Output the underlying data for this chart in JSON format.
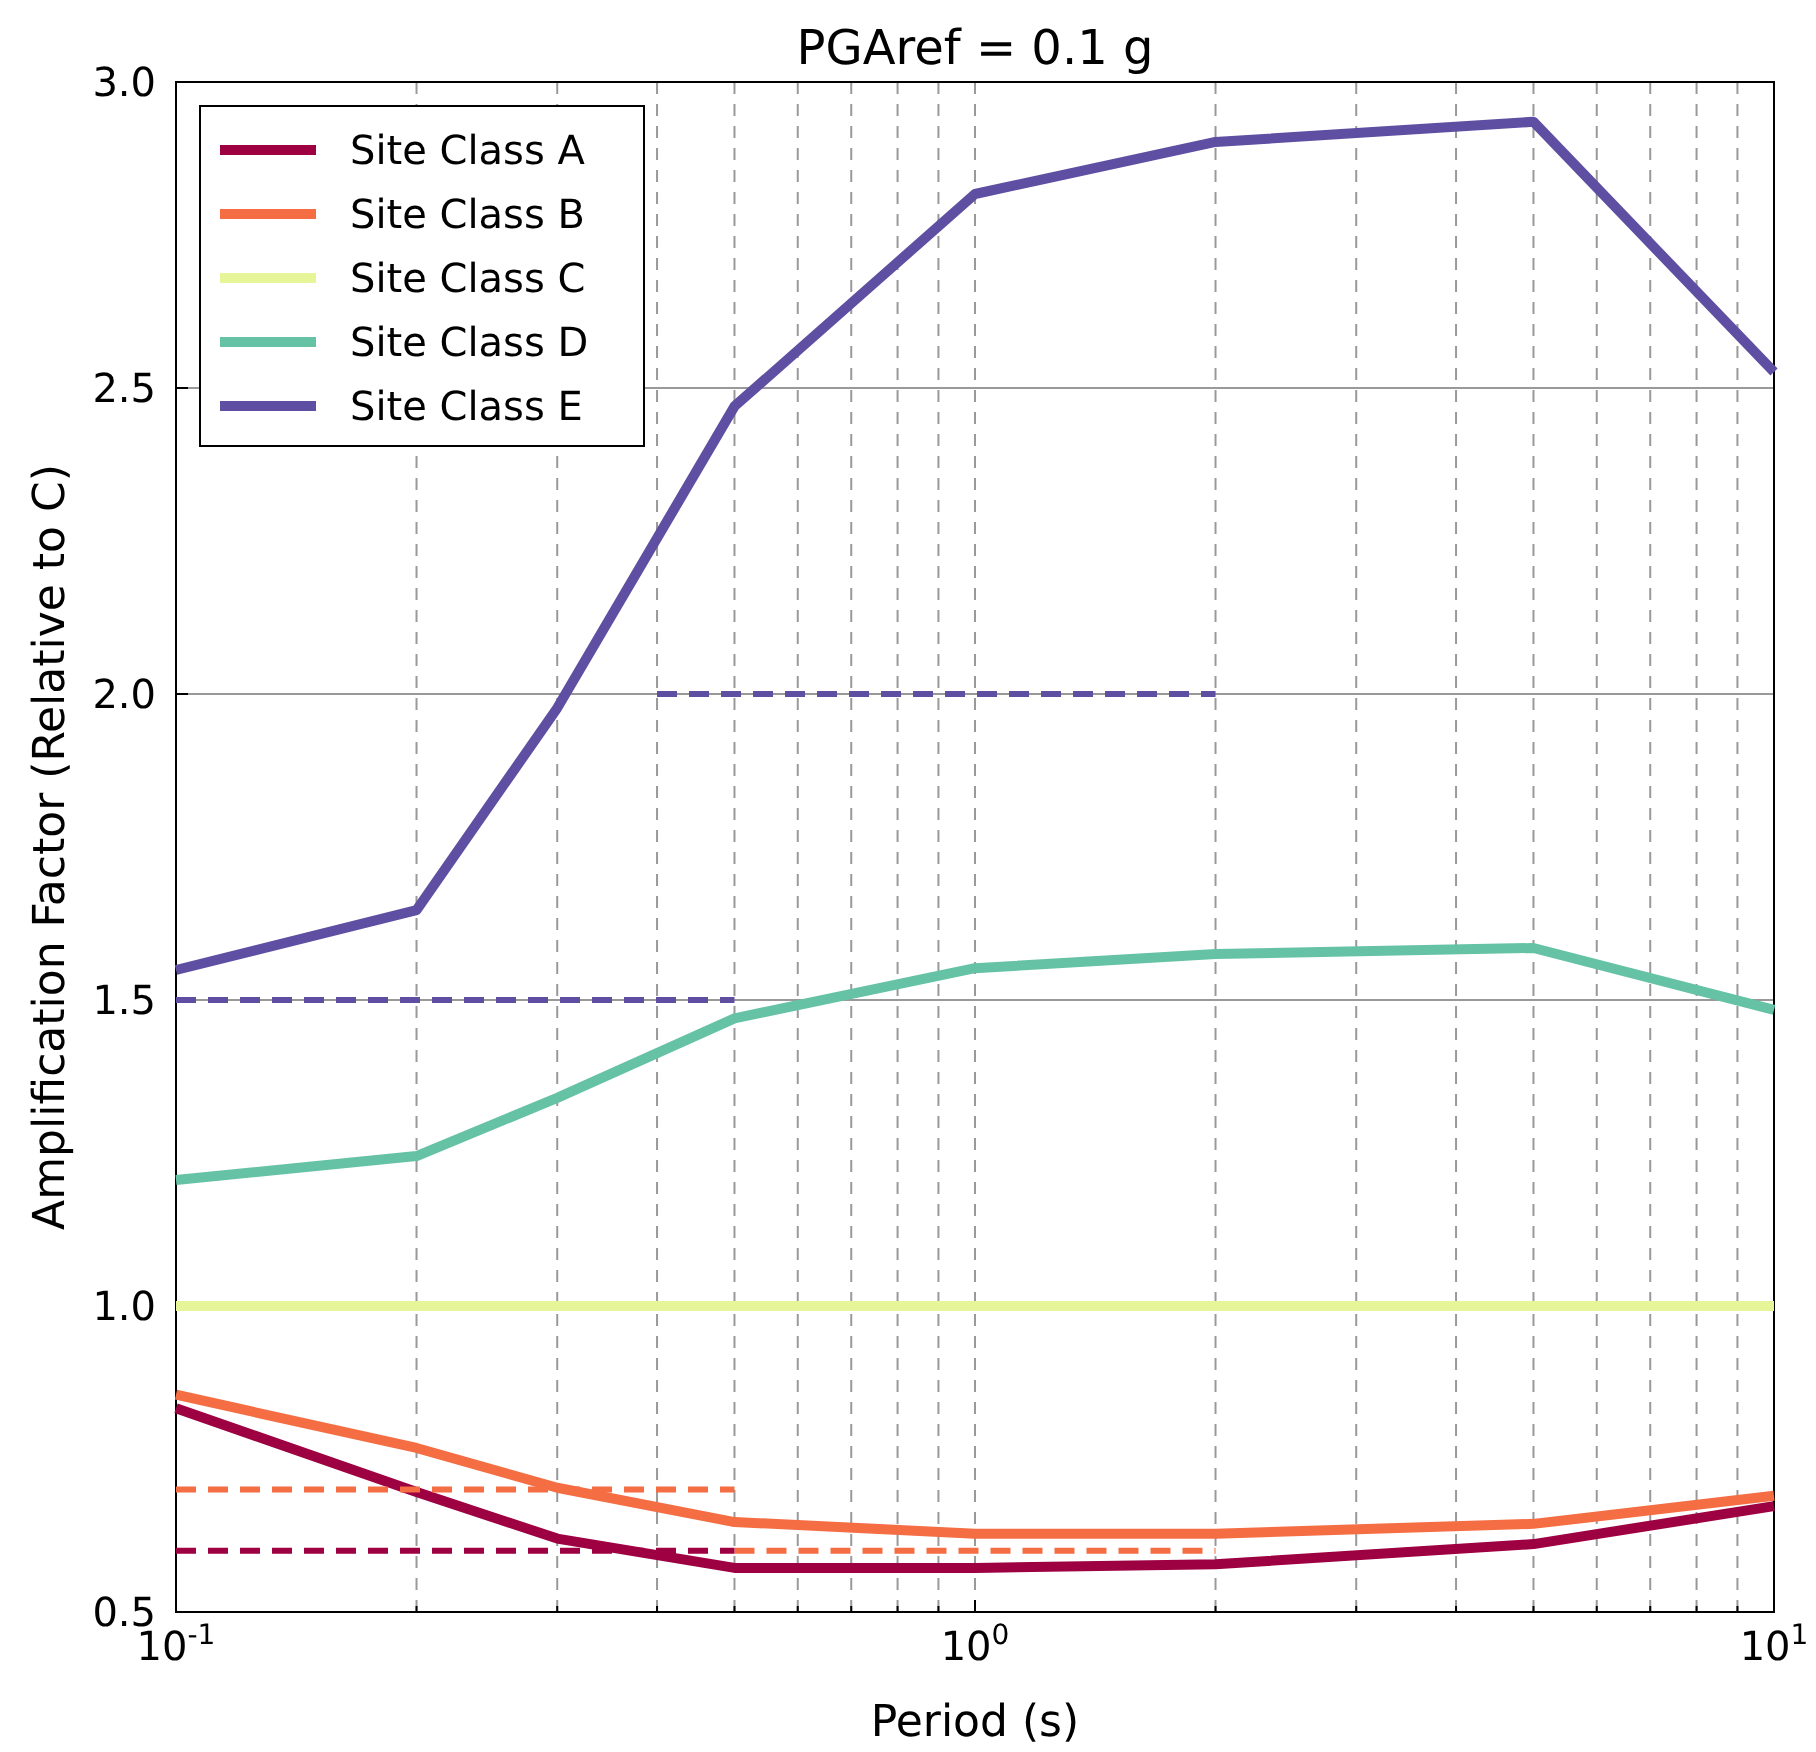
{
  "chart_data": {
    "type": "line",
    "title": "PGAref = 0.1 g",
    "xlabel": "Period (s)",
    "ylabel": "Amplification Factor (Relative to C)",
    "log": "x",
    "grid": true,
    "legend": "top left",
    "marker": "none",
    "line_style": "solid",
    "xlim": [
      0.1,
      10
    ],
    "ylim": [
      0.5,
      3.0
    ],
    "xticks": [
      {
        "value": 0.1,
        "label": "10$^{-1}$"
      },
      {
        "value": 0.2,
        "label": null
      },
      {
        "value": 0.3,
        "label": null
      },
      {
        "value": 0.4,
        "label": null
      },
      {
        "value": 0.5,
        "label": null
      },
      {
        "value": 0.6,
        "label": null
      },
      {
        "value": 0.7,
        "label": null
      },
      {
        "value": 0.8,
        "label": null
      },
      {
        "value": 0.9,
        "label": null
      },
      {
        "value": 1,
        "label": "10$^{0}$"
      },
      {
        "value": 2,
        "label": null
      },
      {
        "value": 3,
        "label": null
      },
      {
        "value": 4,
        "label": null
      },
      {
        "value": 5,
        "label": null
      },
      {
        "value": 6,
        "label": null
      },
      {
        "value": 7,
        "label": null
      },
      {
        "value": 8,
        "label": null
      },
      {
        "value": 9,
        "label": null
      },
      {
        "value": 10,
        "label": "10$^{1}$"
      }
    ],
    "yticks": [
      0.5,
      {
        "value": 1,
        "label": "1.0"
      },
      1.5,
      {
        "value": 2,
        "label": "2.0"
      },
      2.5,
      {
        "value": 3,
        "label": "3.0"
      }
    ],
    "x": [
      0.1,
      0.2,
      0.3,
      0.5,
      1,
      2,
      5,
      10
    ],
    "series": [
      {
        "name": "Site Class A",
        "color": "#9e0142",
        "values": [
          0.833,
          0.696,
          0.62,
          0.572,
          0.572,
          0.578,
          0.611,
          0.673
        ]
      },
      {
        "name": "Site Class B",
        "color": "#f46d43",
        "values": [
          0.855,
          0.768,
          0.703,
          0.647,
          0.628,
          0.628,
          0.644,
          0.69
        ]
      },
      {
        "name": "Site Class C",
        "color": "#e6f598",
        "values": [
          1,
          1,
          1,
          1,
          1,
          1,
          1,
          1
        ]
      },
      {
        "name": "Site Class D",
        "color": "#66c2a5",
        "values": [
          1.206,
          1.245,
          1.34,
          1.47,
          1.552,
          1.575,
          1.585,
          1.484
        ]
      },
      {
        "name": "Site Class E",
        "color": "#5e4fa2",
        "values": [
          1.549,
          1.647,
          1.977,
          2.47,
          2.817,
          2.902,
          2.935,
          2.526
        ]
      },
      {
        "color": "#5e4fa2",
        "line_style": "dashed",
        "x": [
          0.1,
          0.5
        ],
        "values": [
          1.5,
          1.5
        ]
      },
      {
        "color": "#5e4fa2",
        "line_style": "dashed",
        "x": [
          0.4,
          2
        ],
        "values": [
          2,
          2
        ]
      },
      {
        "color": "#f46d43",
        "line_style": "dashed",
        "x": [
          0.1,
          0.5
        ],
        "values": [
          0.7,
          0.7
        ]
      },
      {
        "color": "#f46d43",
        "line_style": "dashed",
        "x": [
          0.5,
          2
        ],
        "values": [
          0.6,
          0.6
        ]
      },
      {
        "color": "#9e0142",
        "line_style": "dashed",
        "x": [
          0.1,
          0.5
        ],
        "values": [
          0.6,
          0.6
        ]
      }
    ]
  }
}
